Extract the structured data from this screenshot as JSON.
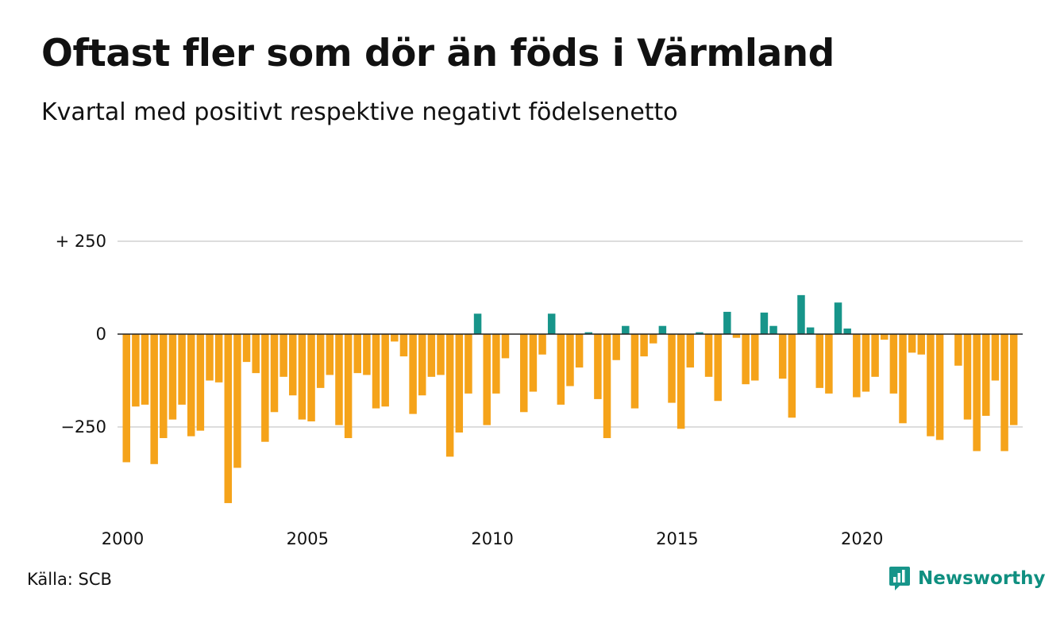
{
  "title": "Oftast fler som dör än föds i Värmland",
  "subtitle": "Kvartal med positivt respektive negativt födelsenetto",
  "source": "Källa: SCB",
  "brand": {
    "name": "Newsworthy",
    "icon": "newsworthy-logo-icon"
  },
  "colors": {
    "negative": "#f5a31a",
    "positive": "#17958a",
    "grid": "#dddddd",
    "zero_line": "#222222"
  },
  "chart_data": {
    "type": "bar",
    "x_start": "2000Q1",
    "xlim": [
      "2000Q1",
      "2024Q2"
    ],
    "ylim": [
      -490,
      250
    ],
    "grid": true,
    "y_ticks": [
      {
        "value": 250,
        "label": "+ 250"
      },
      {
        "value": 0,
        "label": "0"
      },
      {
        "value": -250,
        "label": "−250"
      }
    ],
    "x_ticks": [
      {
        "year": 2000,
        "label": "2000"
      },
      {
        "year": 2005,
        "label": "2005"
      },
      {
        "year": 2010,
        "label": "2010"
      },
      {
        "year": 2015,
        "label": "2015"
      },
      {
        "year": 2020,
        "label": "2020"
      }
    ],
    "values": [
      -345,
      -195,
      -190,
      -350,
      -280,
      -230,
      -190,
      -275,
      -260,
      -125,
      -130,
      -455,
      -360,
      -75,
      -105,
      -290,
      -210,
      -115,
      -165,
      -230,
      -235,
      -145,
      -110,
      -245,
      -280,
      -105,
      -110,
      -200,
      -195,
      -20,
      -60,
      -215,
      -165,
      -115,
      -110,
      -330,
      -265,
      -160,
      55,
      -245,
      -160,
      -65,
      0,
      -210,
      -155,
      -55,
      55,
      -190,
      -140,
      -90,
      5,
      -175,
      -280,
      -70,
      22,
      -200,
      -60,
      -25,
      22,
      -185,
      -255,
      -90,
      5,
      -115,
      -180,
      60,
      -10,
      -135,
      -125,
      58,
      22,
      -120,
      -225,
      105,
      18,
      -145,
      -160,
      85,
      15,
      -170,
      -155,
      -115,
      -15,
      -160,
      -240,
      -50,
      -55,
      -275,
      -285,
      0,
      -85,
      -230,
      -315,
      -220,
      -125,
      -315,
      -245
    ]
  }
}
